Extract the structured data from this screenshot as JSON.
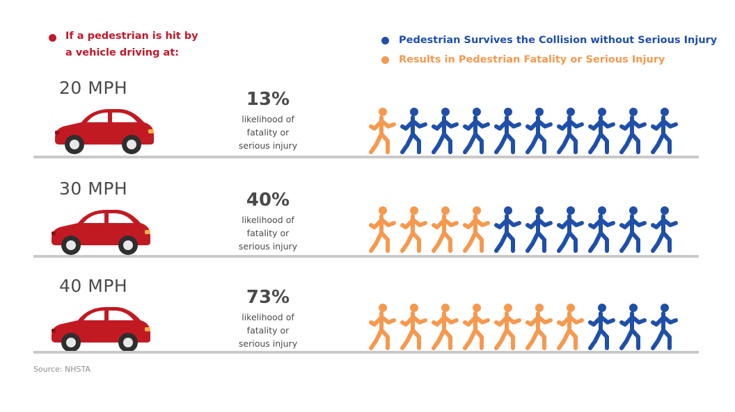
{
  "intro": {
    "text": "If a pedestrian is hit by\na vehicle driving at:",
    "color": "#c2182b"
  },
  "legend": [
    {
      "label": "Pedestrian Survives the Collision without Serious Injury",
      "color": "#1f4fa8"
    },
    {
      "label": "Results in Pedestrian Fatality or Serious Injury",
      "color": "#f5994f"
    }
  ],
  "chart_data": {
    "type": "pictograph",
    "units_per_row": 10,
    "categories": [
      "20 MPH",
      "30 MPH",
      "40 MPH"
    ],
    "series": [
      {
        "name": "Results in Pedestrian Fatality or Serious Injury",
        "values": [
          1,
          4,
          7
        ],
        "color": "#f5994f"
      },
      {
        "name": "Pedestrian Survives the Collision without Serious Injury",
        "values": [
          9,
          6,
          3
        ],
        "color": "#1f4fa8"
      }
    ],
    "rows": [
      {
        "speed": "20 MPH",
        "percent": "13%",
        "description": "likelihood of\nfatality or\nserious injury"
      },
      {
        "speed": "30 MPH",
        "percent": "40%",
        "description": "likelihood of\nfatality or\nserious injury"
      },
      {
        "speed": "40 MPH",
        "percent": "73%",
        "description": "likelihood of\nfatality or\nserious injury"
      }
    ]
  },
  "source": "Source: NHSTA",
  "colors": {
    "car": "#c21a22",
    "ground": "#c9c9c9",
    "text": "#4a4a4a"
  }
}
